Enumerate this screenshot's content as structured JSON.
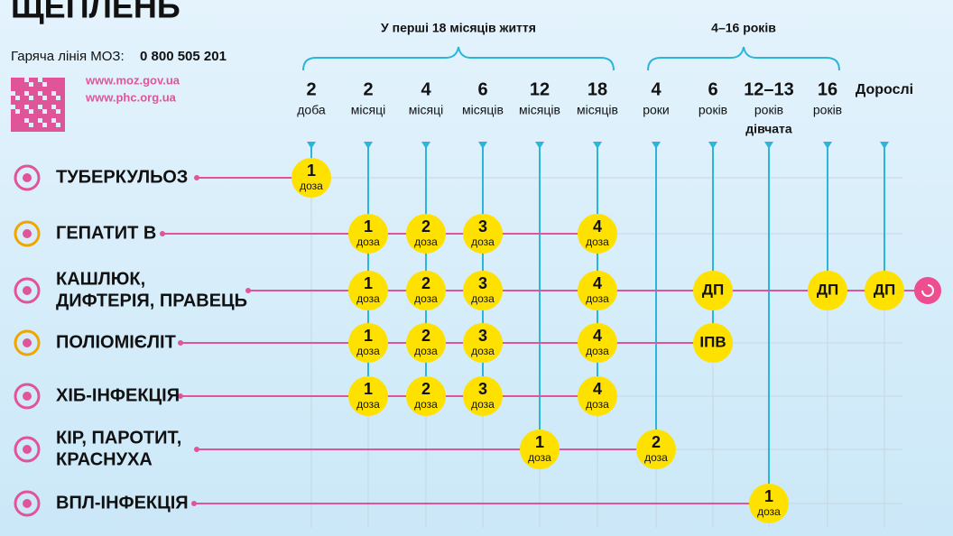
{
  "header": {
    "title": "ЩЕПЛЕНЬ",
    "hotline_label": "Гаряча лінія МОЗ:",
    "hotline_number": "0 800 505 201",
    "links": [
      "www.moz.gov.ua",
      "www.phc.org.ua"
    ]
  },
  "groups": [
    {
      "label": "У перші 18 місяців життя"
    },
    {
      "label": "4–16 років"
    }
  ],
  "columns": [
    {
      "number": "2",
      "unit": "доба"
    },
    {
      "number": "2",
      "unit": "місяці"
    },
    {
      "number": "4",
      "unit": "місяці"
    },
    {
      "number": "6",
      "unit": "місяців"
    },
    {
      "number": "12",
      "unit": "місяців"
    },
    {
      "number": "18",
      "unit": "місяців"
    },
    {
      "number": "4",
      "unit": "роки"
    },
    {
      "number": "6",
      "unit": "років"
    },
    {
      "number": "12–13",
      "unit": "років",
      "note": "дівчата"
    },
    {
      "number": "16",
      "unit": "років"
    },
    {
      "number": "Дорослі"
    }
  ],
  "rows": [
    {
      "label": [
        "ТУБЕРКУЛЬОЗ"
      ],
      "cells": [
        {
          "number": "1",
          "unit": "доза"
        },
        null,
        null,
        null,
        null,
        null,
        null,
        null,
        null,
        null,
        null
      ]
    },
    {
      "label": [
        "ГЕПАТИТ В"
      ],
      "cells": [
        null,
        {
          "number": "1",
          "unit": "доза"
        },
        {
          "number": "2",
          "unit": "доза"
        },
        {
          "number": "3",
          "unit": "доза"
        },
        null,
        {
          "number": "4",
          "unit": "доза"
        },
        null,
        null,
        null,
        null,
        null
      ]
    },
    {
      "label": [
        "КАШЛЮК,",
        "ДИФТЕРІЯ, ПРАВЕЦЬ"
      ],
      "cells": [
        null,
        {
          "number": "1",
          "unit": "доза"
        },
        {
          "number": "2",
          "unit": "доза"
        },
        {
          "number": "3",
          "unit": "доза"
        },
        null,
        {
          "number": "4",
          "unit": "доза"
        },
        null,
        {
          "number": "ДП"
        },
        null,
        {
          "number": "ДП"
        },
        {
          "number": "ДП"
        }
      ]
    },
    {
      "label": [
        "ПОЛІОМІЄЛІТ"
      ],
      "cells": [
        null,
        {
          "number": "1",
          "unit": "доза"
        },
        {
          "number": "2",
          "unit": "доза"
        },
        {
          "number": "3",
          "unit": "доза"
        },
        null,
        {
          "number": "4",
          "unit": "доза"
        },
        null,
        {
          "number": "ІПВ"
        },
        null,
        null,
        null
      ]
    },
    {
      "label": [
        "ХІБ-ІНФЕКЦІЯ"
      ],
      "cells": [
        null,
        {
          "number": "1",
          "unit": "доза"
        },
        {
          "number": "2",
          "unit": "доза"
        },
        {
          "number": "3",
          "unit": "доза"
        },
        null,
        {
          "number": "4",
          "unit": "доза"
        },
        null,
        null,
        null,
        null,
        null
      ]
    },
    {
      "label": [
        "КІР, ПАРОТИТ,",
        "КРАСНУХА"
      ],
      "cells": [
        null,
        null,
        null,
        null,
        {
          "number": "1",
          "unit": "доза"
        },
        null,
        {
          "number": "2",
          "unit": "доза"
        },
        null,
        null,
        null,
        null
      ]
    },
    {
      "label": [
        "ВПЛ-ІНФЕКЦІЯ"
      ],
      "cells": [
        null,
        null,
        null,
        null,
        null,
        null,
        null,
        null,
        {
          "number": "1",
          "unit": "доза"
        },
        null,
        null
      ]
    }
  ]
}
